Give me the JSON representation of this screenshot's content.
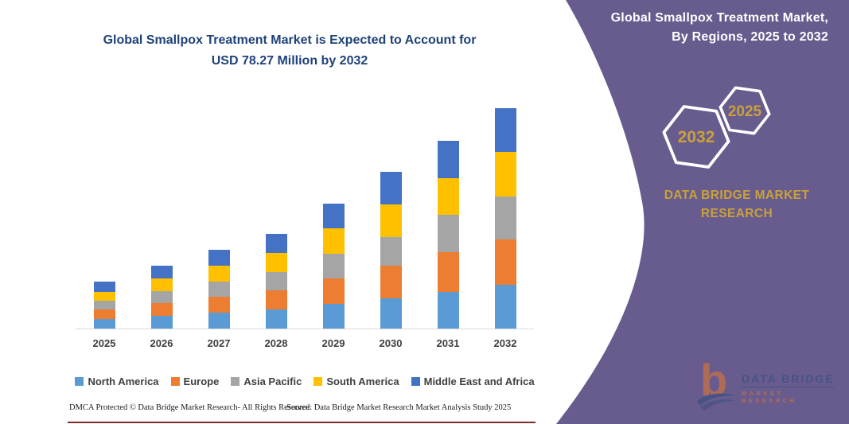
{
  "left": {
    "title_line1": "Global Smallpox Treatment Market is Expected to Account for",
    "title_line2": "USD 78.27 Million by 2032",
    "footer_left": "DMCA Protected © Data Bridge Market Research-  All Rights Reserved.",
    "footer_right": "Source: Data Bridge Market Research  Market Analysis Study 2025"
  },
  "right_panel": {
    "title_line1": "Global Smallpox Treatment Market,",
    "title_line2": "By Regions, 2025 to 2032",
    "hexagon_back_label": "2032",
    "hexagon_front_label": "2025",
    "brand_line1": "DATA BRIDGE MARKET",
    "brand_line2": "RESEARCH",
    "logo_line1": "DATA BRIDGE",
    "logo_line2": "MARKET RESEARCH"
  },
  "colors": {
    "panel_purple": "#685c8f",
    "title_navy": "#1f4279",
    "gold_text": "#c9a13b",
    "axis_line": "#d9d9d9",
    "tick_label_gray": "#3f3f3f",
    "bottom_line_maroon": "#7b2b28",
    "logo_orange": "#e87a2b",
    "logo_navy": "#2f4b7c"
  },
  "chart_data": {
    "type": "bar",
    "stacked": true,
    "title": "Global Smallpox Treatment Market is Expected to Account for USD 78.27 Million by 2032",
    "unit": "USD Million",
    "categories": [
      "2025",
      "2026",
      "2027",
      "2028",
      "2029",
      "2030",
      "2031",
      "2032"
    ],
    "series": [
      {
        "name": "North America",
        "color": "#5b9bd5",
        "values": [
          3.4,
          4.5,
          5.6,
          6.7,
          8.9,
          10.6,
          13.0,
          15.5
        ]
      },
      {
        "name": "Europe",
        "color": "#ed7d31",
        "values": [
          3.3,
          4.6,
          5.7,
          6.8,
          8.9,
          11.8,
          14.1,
          16.0
        ]
      },
      {
        "name": "Asia Pacific",
        "color": "#a5a5a5",
        "values": [
          3.1,
          4.3,
          5.5,
          6.7,
          8.85,
          10.2,
          13.3,
          15.5
        ]
      },
      {
        "name": "South America",
        "color": "#ffc000",
        "values": [
          3.3,
          4.4,
          5.6,
          6.7,
          8.9,
          11.5,
          13.0,
          15.8
        ]
      },
      {
        "name": "Middle East and Africa",
        "color": "#4472c4",
        "values": [
          3.6,
          4.5,
          5.6,
          6.8,
          8.9,
          11.4,
          13.2,
          15.47
        ]
      }
    ],
    "totals": [
      16.7,
      22.3,
      28.0,
      33.7,
      44.45,
      55.5,
      66.6,
      78.27
    ],
    "ylim": [
      0,
      80
    ],
    "grid": false,
    "legend_position": "bottom",
    "xlabel": "",
    "ylabel": ""
  }
}
